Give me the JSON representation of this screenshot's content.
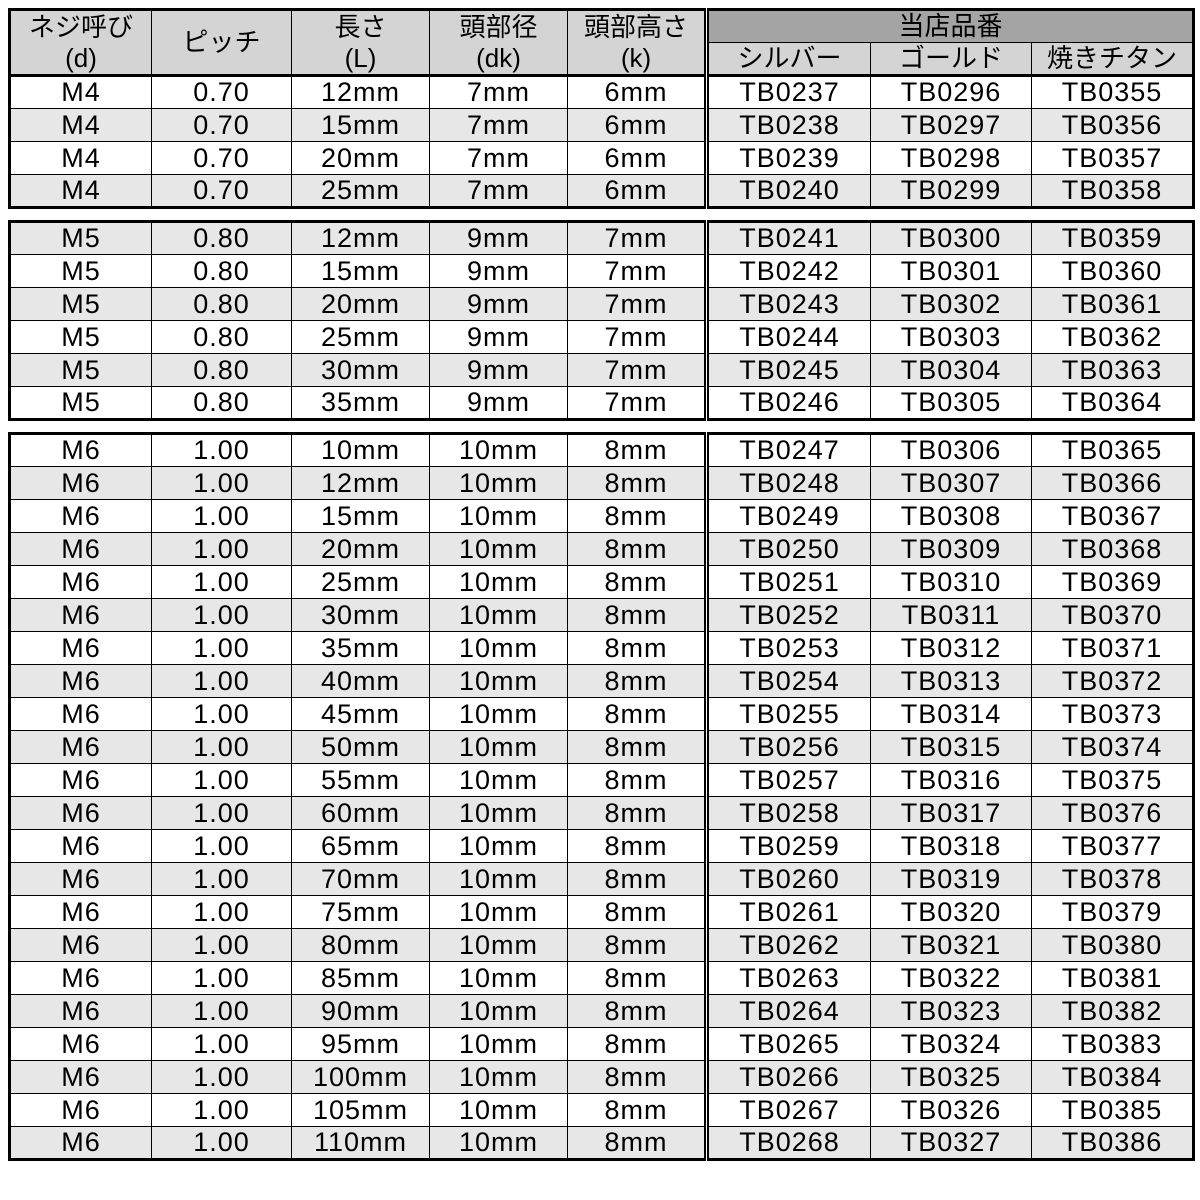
{
  "table": {
    "title_semantic": "titanium-bolt-spec-and-part-number-table",
    "headers": {
      "screw": {
        "line1": "ネジ呼び",
        "line2": "(d)"
      },
      "pitch": {
        "line1": "ピッチ",
        "line2": ""
      },
      "length": {
        "line1": "長さ",
        "line2": "(L)"
      },
      "head_dia": {
        "line1": "頭部径",
        "line2": "(dk)"
      },
      "head_height": {
        "line1": "頭部高さ",
        "line2": "(k)"
      },
      "part_group": "当店品番",
      "silver": "シルバー",
      "gold": "ゴールド",
      "titanium": "焼きチタン"
    },
    "colors": {
      "header_bg": "#d4d4d4",
      "group_header_bg": "#a4a4a4",
      "row_shaded_bg": "#e7e7e7",
      "row_bg": "#ffffff",
      "border": "#000000"
    },
    "blocks": [
      {
        "screw_size": "M4",
        "first_row_shaded": false,
        "rows": [
          [
            "M4",
            "0.70",
            "12mm",
            "7mm",
            "6mm",
            "TB0237",
            "TB0296",
            "TB0355"
          ],
          [
            "M4",
            "0.70",
            "15mm",
            "7mm",
            "6mm",
            "TB0238",
            "TB0297",
            "TB0356"
          ],
          [
            "M4",
            "0.70",
            "20mm",
            "7mm",
            "6mm",
            "TB0239",
            "TB0298",
            "TB0357"
          ],
          [
            "M4",
            "0.70",
            "25mm",
            "7mm",
            "6mm",
            "TB0240",
            "TB0299",
            "TB0358"
          ]
        ]
      },
      {
        "screw_size": "M5",
        "first_row_shaded": true,
        "rows": [
          [
            "M5",
            "0.80",
            "12mm",
            "9mm",
            "7mm",
            "TB0241",
            "TB0300",
            "TB0359"
          ],
          [
            "M5",
            "0.80",
            "15mm",
            "9mm",
            "7mm",
            "TB0242",
            "TB0301",
            "TB0360"
          ],
          [
            "M5",
            "0.80",
            "20mm",
            "9mm",
            "7mm",
            "TB0243",
            "TB0302",
            "TB0361"
          ],
          [
            "M5",
            "0.80",
            "25mm",
            "9mm",
            "7mm",
            "TB0244",
            "TB0303",
            "TB0362"
          ],
          [
            "M5",
            "0.80",
            "30mm",
            "9mm",
            "7mm",
            "TB0245",
            "TB0304",
            "TB0363"
          ],
          [
            "M5",
            "0.80",
            "35mm",
            "9mm",
            "7mm",
            "TB0246",
            "TB0305",
            "TB0364"
          ]
        ]
      },
      {
        "screw_size": "M6",
        "first_row_shaded": false,
        "rows": [
          [
            "M6",
            "1.00",
            "10mm",
            "10mm",
            "8mm",
            "TB0247",
            "TB0306",
            "TB0365"
          ],
          [
            "M6",
            "1.00",
            "12mm",
            "10mm",
            "8mm",
            "TB0248",
            "TB0307",
            "TB0366"
          ],
          [
            "M6",
            "1.00",
            "15mm",
            "10mm",
            "8mm",
            "TB0249",
            "TB0308",
            "TB0367"
          ],
          [
            "M6",
            "1.00",
            "20mm",
            "10mm",
            "8mm",
            "TB0250",
            "TB0309",
            "TB0368"
          ],
          [
            "M6",
            "1.00",
            "25mm",
            "10mm",
            "8mm",
            "TB0251",
            "TB0310",
            "TB0369"
          ],
          [
            "M6",
            "1.00",
            "30mm",
            "10mm",
            "8mm",
            "TB0252",
            "TB0311",
            "TB0370"
          ],
          [
            "M6",
            "1.00",
            "35mm",
            "10mm",
            "8mm",
            "TB0253",
            "TB0312",
            "TB0371"
          ],
          [
            "M6",
            "1.00",
            "40mm",
            "10mm",
            "8mm",
            "TB0254",
            "TB0313",
            "TB0372"
          ],
          [
            "M6",
            "1.00",
            "45mm",
            "10mm",
            "8mm",
            "TB0255",
            "TB0314",
            "TB0373"
          ],
          [
            "M6",
            "1.00",
            "50mm",
            "10mm",
            "8mm",
            "TB0256",
            "TB0315",
            "TB0374"
          ],
          [
            "M6",
            "1.00",
            "55mm",
            "10mm",
            "8mm",
            "TB0257",
            "TB0316",
            "TB0375"
          ],
          [
            "M6",
            "1.00",
            "60mm",
            "10mm",
            "8mm",
            "TB0258",
            "TB0317",
            "TB0376"
          ],
          [
            "M6",
            "1.00",
            "65mm",
            "10mm",
            "8mm",
            "TB0259",
            "TB0318",
            "TB0377"
          ],
          [
            "M6",
            "1.00",
            "70mm",
            "10mm",
            "8mm",
            "TB0260",
            "TB0319",
            "TB0378"
          ],
          [
            "M6",
            "1.00",
            "75mm",
            "10mm",
            "8mm",
            "TB0261",
            "TB0320",
            "TB0379"
          ],
          [
            "M6",
            "1.00",
            "80mm",
            "10mm",
            "8mm",
            "TB0262",
            "TB0321",
            "TB0380"
          ],
          [
            "M6",
            "1.00",
            "85mm",
            "10mm",
            "8mm",
            "TB0263",
            "TB0322",
            "TB0381"
          ],
          [
            "M6",
            "1.00",
            "90mm",
            "10mm",
            "8mm",
            "TB0264",
            "TB0323",
            "TB0382"
          ],
          [
            "M6",
            "1.00",
            "95mm",
            "10mm",
            "8mm",
            "TB0265",
            "TB0324",
            "TB0383"
          ],
          [
            "M6",
            "1.00",
            "100mm",
            "10mm",
            "8mm",
            "TB0266",
            "TB0325",
            "TB0384"
          ],
          [
            "M6",
            "1.00",
            "105mm",
            "10mm",
            "8mm",
            "TB0267",
            "TB0326",
            "TB0385"
          ],
          [
            "M6",
            "1.00",
            "110mm",
            "10mm",
            "8mm",
            "TB0268",
            "TB0327",
            "TB0386"
          ]
        ]
      }
    ]
  }
}
